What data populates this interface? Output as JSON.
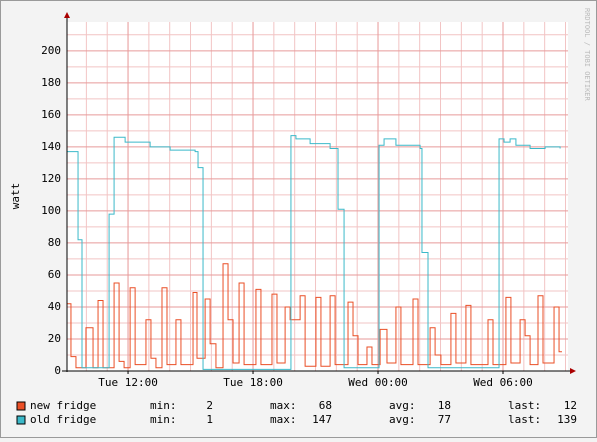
{
  "chart_data": {
    "type": "line",
    "step": true,
    "grid": true,
    "y_label": "watt",
    "watermark": "RRDTOOL / TOBI OETIKER",
    "xlim": [
      9.07,
      33.12
    ],
    "ylim": [
      0,
      218
    ],
    "yticks": [
      0,
      20,
      40,
      60,
      80,
      100,
      120,
      140,
      160,
      180,
      200
    ],
    "xticks": [
      {
        "value": 12,
        "label": "Tue 12:00"
      },
      {
        "value": 18,
        "label": "Tue 18:00"
      },
      {
        "value": 24,
        "label": "Wed 00:00"
      },
      {
        "value": 30,
        "label": "Wed 06:00"
      }
    ],
    "stat_labels": {
      "min": "min:",
      "max": "max:",
      "avg": "avg:",
      "last": "last:"
    },
    "series": [
      {
        "name": "new fridge",
        "color": "#ea4f26",
        "stats": {
          "min": 2,
          "max": 68,
          "avg": 18,
          "last": 12
        },
        "x": [
          9.07,
          9.26,
          9.5,
          9.98,
          10.32,
          10.56,
          10.8,
          11.33,
          11.57,
          11.81,
          12.1,
          12.34,
          12.86,
          13.1,
          13.34,
          13.63,
          13.87,
          14.3,
          14.54,
          15.12,
          15.31,
          15.7,
          15.94,
          16.22,
          16.56,
          16.8,
          17.04,
          17.33,
          17.57,
          18.14,
          18.38,
          18.91,
          19.15,
          19.54,
          19.78,
          20.26,
          20.5,
          21.02,
          21.26,
          21.7,
          21.94,
          22.56,
          22.8,
          23.04,
          23.47,
          23.71,
          24.1,
          24.43,
          24.86,
          25.1,
          25.68,
          25.92,
          26.5,
          26.74,
          27.02,
          27.5,
          27.74,
          28.22,
          28.46,
          29.28,
          29.52,
          30.14,
          30.38,
          30.82,
          31.06,
          31.3,
          31.68,
          31.92,
          32.45,
          32.69,
          32.83
        ],
        "values": [
          42,
          9,
          2,
          27,
          2,
          44,
          2,
          55,
          6,
          2,
          52,
          4,
          32,
          8,
          2,
          52,
          4,
          32,
          4,
          49,
          8,
          45,
          17,
          2,
          67,
          32,
          5,
          55,
          4,
          51,
          4,
          48,
          5,
          40,
          32,
          47,
          3,
          46,
          3,
          47,
          4,
          43,
          22,
          4,
          15,
          4,
          26,
          5,
          40,
          4,
          45,
          4,
          27,
          10,
          4,
          36,
          5,
          41,
          4,
          32,
          4,
          46,
          5,
          32,
          22,
          4,
          47,
          5,
          40,
          12,
          12
        ]
      },
      {
        "name": "old fridge",
        "color": "#3bb9c9",
        "stats": {
          "min": 1,
          "max": 147,
          "avg": 77,
          "last": 139
        },
        "x": [
          9.07,
          9.55,
          9.6,
          9.74,
          9.79,
          11.04,
          11.09,
          11.23,
          11.33,
          11.52,
          11.86,
          13.06,
          14.02,
          15.22,
          15.36,
          15.55,
          15.6,
          19.78,
          19.82,
          20.06,
          20.74,
          21.7,
          21.98,
          22.08,
          22.27,
          22.37,
          23.95,
          24.05,
          24.29,
          24.58,
          24.86,
          26.02,
          26.11,
          26.3,
          26.4,
          29.71,
          29.81,
          30.05,
          30.34,
          30.62,
          31.3,
          32.02,
          32.74
        ],
        "values": [
          137,
          137,
          82,
          82,
          2,
          2,
          98,
          98,
          146,
          146,
          143,
          140,
          138,
          137,
          127,
          127,
          1,
          1,
          147,
          145,
          142,
          139,
          139,
          101,
          101,
          2,
          2,
          141,
          145,
          145,
          141,
          139,
          74,
          74,
          2,
          2,
          145,
          143,
          145,
          141,
          139,
          140,
          139
        ]
      }
    ]
  }
}
